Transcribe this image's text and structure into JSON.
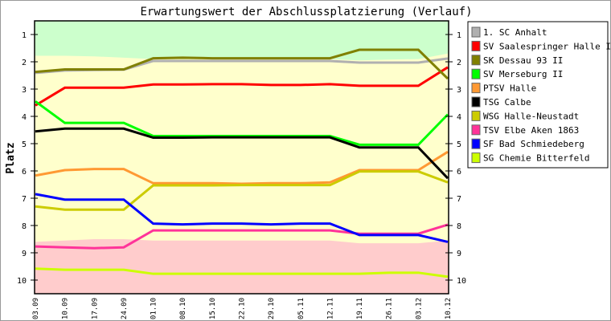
{
  "chart_data": {
    "type": "line",
    "title": "Erwartungswert der Abschlussplatzierung (Verlauf)",
    "xlabel": "",
    "ylabel": "Platz",
    "ylim": [
      10.5,
      0.5
    ],
    "yticks": [
      1,
      2,
      3,
      4,
      5,
      6,
      7,
      8,
      9,
      10
    ],
    "x": [
      "03.09",
      "10.09",
      "17.09",
      "24.09",
      "01.10",
      "08.10",
      "15.10",
      "22.10",
      "29.10",
      "05.11",
      "12.11",
      "19.11",
      "26.11",
      "03.12",
      "10.12"
    ],
    "legend_position": "top-right",
    "zones": {
      "promotion_boundary": [
        1.78,
        1.78,
        1.8,
        1.85,
        1.9,
        1.9,
        1.9,
        1.9,
        1.9,
        1.9,
        1.9,
        1.95,
        1.92,
        1.9,
        1.7
      ],
      "relegation_boundary": [
        8.6,
        8.55,
        8.5,
        8.5,
        8.55,
        8.55,
        8.55,
        8.55,
        8.55,
        8.55,
        8.55,
        8.65,
        8.65,
        8.65,
        8.55
      ],
      "colors": {
        "promotion": "#ccffcc",
        "middle": "#ffffcc",
        "relegation": "#ffcccc"
      }
    },
    "series": [
      {
        "name": "1. SC Anhalt",
        "color": "#b0b0b0",
        "values": [
          2.41,
          2.32,
          2.3,
          2.29,
          1.97,
          1.97,
          1.97,
          1.97,
          1.97,
          1.97,
          1.97,
          2.03,
          2.03,
          2.03,
          1.88
        ]
      },
      {
        "name": "SV Saalespringer Halle II",
        "color": "#ff0000",
        "values": [
          3.6,
          2.95,
          2.95,
          2.95,
          2.83,
          2.83,
          2.82,
          2.82,
          2.85,
          2.85,
          2.82,
          2.88,
          2.88,
          2.88,
          2.2
        ]
      },
      {
        "name": "SK Dessau 93 II",
        "color": "#808000",
        "values": [
          2.37,
          2.28,
          2.28,
          2.28,
          1.87,
          1.85,
          1.87,
          1.87,
          1.87,
          1.87,
          1.87,
          1.56,
          1.56,
          1.56,
          2.62
        ]
      },
      {
        "name": "SV Merseburg II",
        "color": "#00ff00",
        "values": [
          3.45,
          4.24,
          4.24,
          4.24,
          4.72,
          4.72,
          4.72,
          4.72,
          4.72,
          4.72,
          4.72,
          5.04,
          5.04,
          5.04,
          3.93
        ]
      },
      {
        "name": "PTSV Halle",
        "color": "#ff9933",
        "values": [
          6.17,
          5.97,
          5.93,
          5.93,
          6.45,
          6.45,
          6.45,
          6.47,
          6.45,
          6.45,
          6.42,
          5.97,
          5.97,
          5.97,
          5.3
        ]
      },
      {
        "name": "TSG Calbe",
        "color": "#000000",
        "values": [
          4.55,
          4.45,
          4.45,
          4.45,
          4.78,
          4.78,
          4.77,
          4.77,
          4.77,
          4.77,
          4.77,
          5.14,
          5.14,
          5.14,
          6.27
        ]
      },
      {
        "name": "WSG Halle-Neustadt",
        "color": "#cccc00",
        "values": [
          7.3,
          7.42,
          7.42,
          7.42,
          6.53,
          6.53,
          6.53,
          6.52,
          6.52,
          6.52,
          6.52,
          6.02,
          6.02,
          6.02,
          6.42
        ]
      },
      {
        "name": "TSV Elbe Aken 1863",
        "color": "#ff3399",
        "values": [
          8.77,
          8.8,
          8.83,
          8.8,
          8.18,
          8.18,
          8.18,
          8.18,
          8.18,
          8.18,
          8.18,
          8.3,
          8.3,
          8.3,
          7.97
        ]
      },
      {
        "name": "SF Bad Schmiedeberg",
        "color": "#0000ff",
        "values": [
          6.85,
          7.05,
          7.05,
          7.05,
          7.93,
          7.96,
          7.93,
          7.93,
          7.96,
          7.93,
          7.93,
          8.35,
          8.35,
          8.35,
          8.6
        ]
      },
      {
        "name": "SG Chemie Bitterfeld",
        "color": "#ccff00",
        "values": [
          9.58,
          9.62,
          9.62,
          9.62,
          9.77,
          9.77,
          9.77,
          9.77,
          9.77,
          9.77,
          9.77,
          9.77,
          9.73,
          9.73,
          9.88
        ]
      }
    ]
  }
}
